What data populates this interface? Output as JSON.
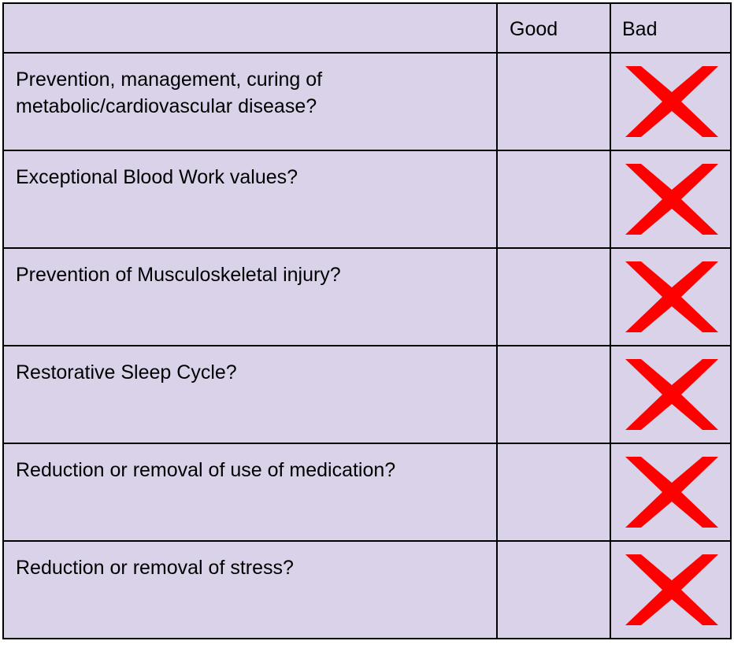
{
  "table": {
    "headers": [
      "",
      "Good",
      "Bad"
    ],
    "rows": [
      {
        "question": "Prevention, management, curing of metabolic/cardiovascular disease?",
        "good": "",
        "bad": "x-mark-icon"
      },
      {
        "question": "Exceptional Blood Work values?",
        "good": "",
        "bad": "x-mark-icon"
      },
      {
        "question": "Prevention of Musculoskeletal injury?",
        "good": "",
        "bad": "x-mark-icon"
      },
      {
        "question": "Restorative Sleep Cycle?",
        "good": "",
        "bad": "x-mark-icon"
      },
      {
        "question": "Reduction or removal of use of medication?",
        "good": "",
        "bad": "x-mark-icon"
      },
      {
        "question": "Reduction or removal of stress?",
        "good": "",
        "bad": "x-mark-icon"
      }
    ]
  },
  "colors": {
    "cell_background": "#d9d2e9",
    "border": "#000000",
    "x_mark": "#ff0000"
  }
}
